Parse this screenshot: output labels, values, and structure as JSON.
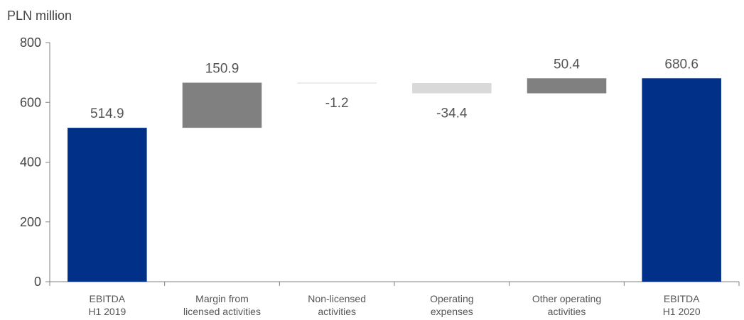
{
  "chart_data": {
    "type": "bar",
    "subtype": "waterfall",
    "unit_label": "PLN million",
    "ylim": [
      0,
      800
    ],
    "yticks": [
      0,
      200,
      400,
      600,
      800
    ],
    "grid": false,
    "legend": "none",
    "categories": [
      [
        "EBITDA",
        "H1 2019"
      ],
      [
        "Margin from",
        "licensed activities"
      ],
      [
        "Non-licensed",
        "activities"
      ],
      [
        "Operating",
        "expenses"
      ],
      [
        "Other operating",
        "activities"
      ],
      [
        "EBITDA",
        "H1 2020"
      ]
    ],
    "bars": [
      {
        "kind": "total",
        "value": 514.9,
        "label": "514.9"
      },
      {
        "kind": "delta",
        "value": 150.9,
        "label": "150.9"
      },
      {
        "kind": "delta",
        "value": -1.2,
        "label": "-1.2"
      },
      {
        "kind": "delta",
        "value": -34.4,
        "label": "-34.4"
      },
      {
        "kind": "delta",
        "value": 50.4,
        "label": "50.4"
      },
      {
        "kind": "total",
        "value": 680.6,
        "label": "680.6"
      }
    ],
    "colors": {
      "total": "#003087",
      "increase": "#808080",
      "decrease": "#d9d9d9",
      "axis": "#808080"
    }
  }
}
